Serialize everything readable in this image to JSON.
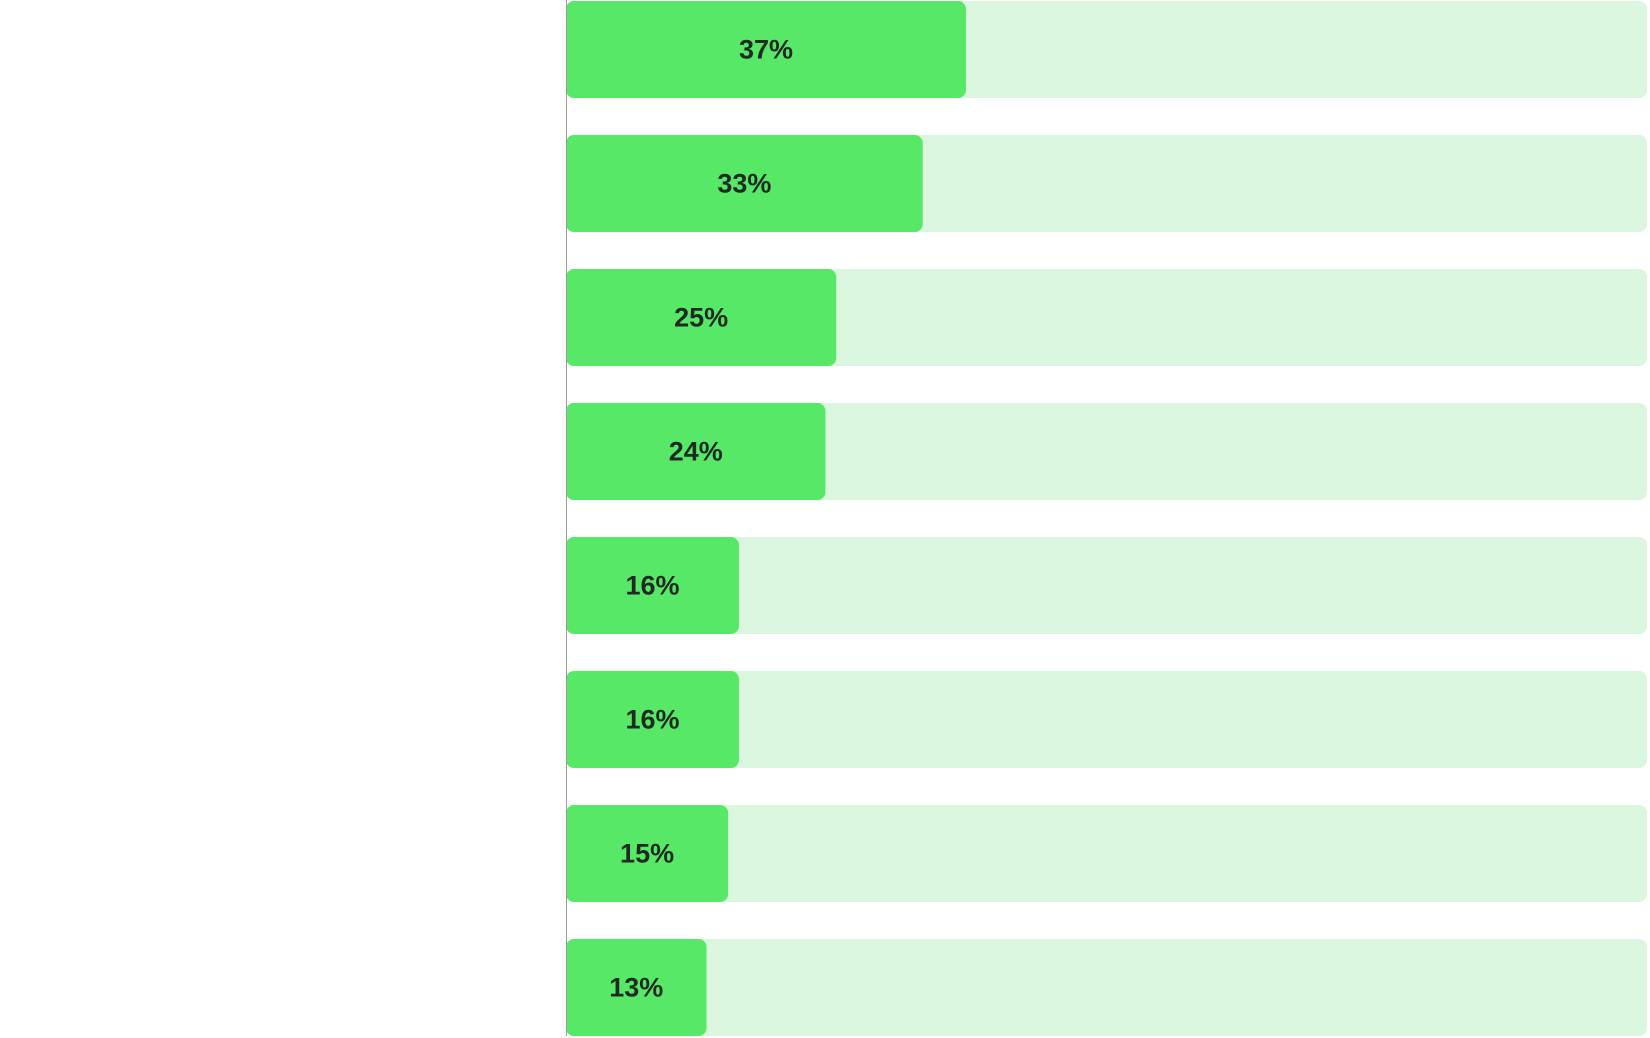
{
  "chart_data": {
    "type": "bar",
    "orientation": "horizontal",
    "title": "",
    "xlabel": "",
    "ylabel": "",
    "categories": [],
    "values": [
      37,
      33,
      25,
      24,
      16,
      16,
      15,
      13
    ],
    "labels": [
      "37%",
      "33%",
      "25%",
      "24%",
      "16%",
      "16%",
      "15%",
      "13%"
    ],
    "xlim": [
      0,
      100
    ],
    "grid": false,
    "legend": "none"
  },
  "colors": {
    "bar_fill": "#57e868",
    "track_fill": "#dbf6de",
    "label_text": "#1f2a22",
    "axis_line": "#9e9e9e",
    "background": "#ffffff"
  }
}
